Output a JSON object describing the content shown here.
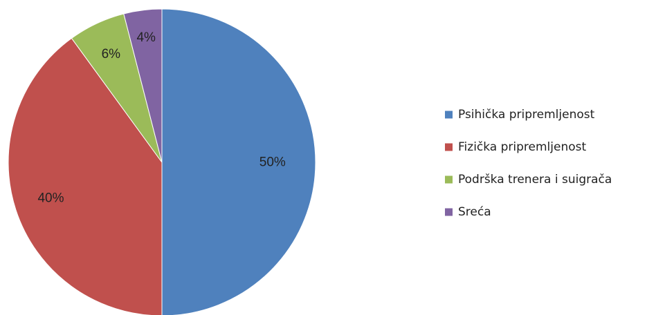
{
  "chart_data": {
    "type": "pie",
    "title": "",
    "categories": [
      "Psihička pripremljenost",
      "Fizička pripremljenost",
      "Podrška trenera i suigrača",
      "Sreća"
    ],
    "values": [
      50,
      40,
      6,
      4
    ],
    "data_labels": [
      "50%",
      "40%",
      "6%",
      "4%"
    ],
    "colors": [
      "#4f81bd",
      "#c0504d",
      "#9bbb59",
      "#8064a2"
    ],
    "start_angle": "12 o'clock",
    "direction": "clockwise",
    "legend": "right"
  }
}
